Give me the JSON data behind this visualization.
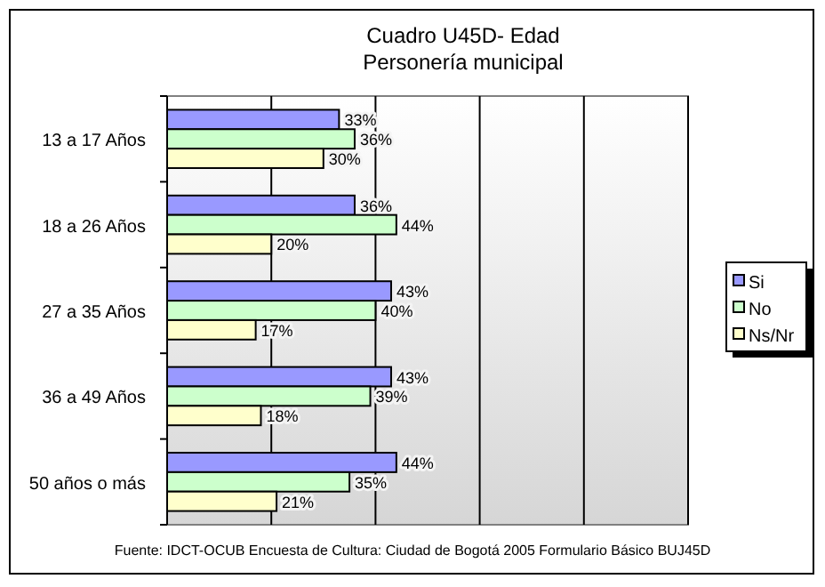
{
  "chart_data": {
    "type": "bar",
    "orientation": "horizontal",
    "title": "Cuadro U45D- Edad",
    "subtitle": "Personería municipal",
    "categories": [
      "13 a 17 Años",
      "18 a 26 Años",
      "27 a 35 Años",
      "36 a 49 Años",
      "50 años o más"
    ],
    "series": [
      {
        "name": "Si",
        "color": "#9999ff",
        "values": [
          33,
          36,
          43,
          43,
          44
        ],
        "value_labels": [
          "33%",
          "36%",
          "43%",
          "43%",
          "44%"
        ]
      },
      {
        "name": "No",
        "color": "#ccffcc",
        "values": [
          36,
          44,
          40,
          39,
          35
        ],
        "value_labels": [
          "36%",
          "44%",
          "40%",
          "39%",
          "35%"
        ]
      },
      {
        "name": "Ns/Nr",
        "color": "#ffffcc",
        "values": [
          30,
          20,
          17,
          18,
          21
        ],
        "value_labels": [
          "30%",
          "20%",
          "17%",
          "18%",
          "21%"
        ]
      }
    ],
    "xlim": [
      0,
      100
    ],
    "xticks": [
      {
        "value": 0,
        "label": null
      },
      {
        "value": 20,
        "label": null
      },
      {
        "value": 40,
        "label": null
      },
      {
        "value": 60,
        "label": null
      },
      {
        "value": 80,
        "label": null
      },
      {
        "value": 100,
        "label": null
      }
    ],
    "tick_labels": "y",
    "grid": "x",
    "legend": "right",
    "annotations": [
      "Fuente: IDCT-OCUB Encuesta de Cultura: Ciudad de Bogotá 2005 Formulario Básico BUJ45D"
    ]
  }
}
